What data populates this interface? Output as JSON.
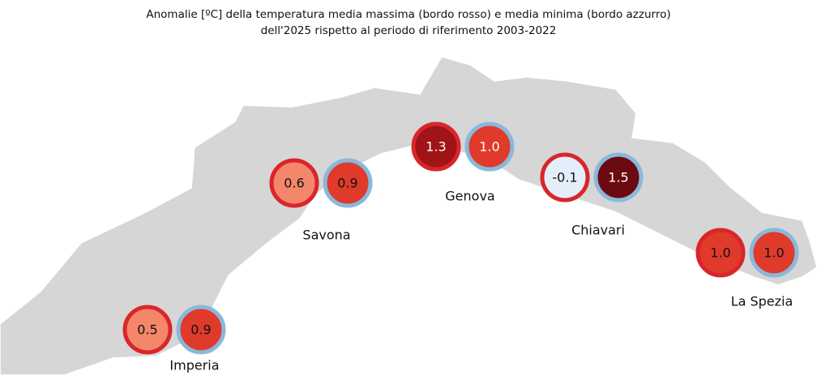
{
  "title": [
    "Anomalie [ºC] della temperatura media massima (bordo rosso) e media minima (bordo azzurro)",
    "dell'2025 rispetto al periodo di riferimento 2003-2022"
  ],
  "max_border": "#d9262a",
  "min_border": "#8ab8dc",
  "stations": [
    {
      "name": "Imperia",
      "max": {
        "value": "0.5",
        "fill": "#f4866a",
        "text_color": "#111111"
      },
      "min": {
        "value": "0.9",
        "fill": "#e03a2a",
        "text_color": "#111111"
      }
    },
    {
      "name": "Savona",
      "max": {
        "value": "0.6",
        "fill": "#f4866a",
        "text_color": "#111111"
      },
      "min": {
        "value": "0.9",
        "fill": "#e03a2a",
        "text_color": "#111111"
      }
    },
    {
      "name": "Genova",
      "max": {
        "value": "1.3",
        "fill": "#a01418",
        "text_color": "#ffffff"
      },
      "min": {
        "value": "1.0",
        "fill": "#e03a2a",
        "text_color": "#ffffff"
      }
    },
    {
      "name": "Chiavari",
      "max": {
        "value": "-0.1",
        "fill": "#e4eefa",
        "text_color": "#111111"
      },
      "min": {
        "value": "1.5",
        "fill": "#6b0a10",
        "text_color": "#ffffff"
      }
    },
    {
      "name": "La Spezia",
      "max": {
        "value": "1.0",
        "fill": "#e03a2a",
        "text_color": "#111111"
      },
      "min": {
        "value": "1.0",
        "fill": "#e03a2a",
        "text_color": "#111111"
      }
    }
  ]
}
